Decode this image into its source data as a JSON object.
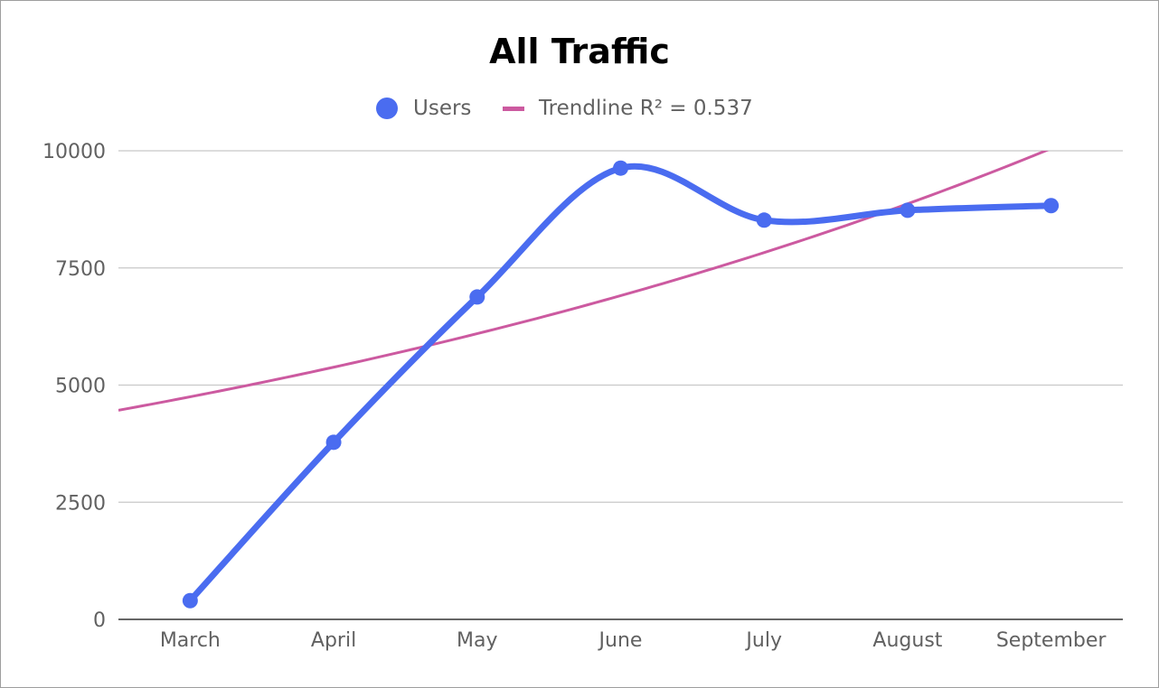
{
  "chart_data": {
    "type": "line",
    "title": "All Traffic",
    "xlabel": "",
    "ylabel": "",
    "categories": [
      "March",
      "April",
      "May",
      "June",
      "July",
      "August",
      "September"
    ],
    "series": [
      {
        "name": "Users",
        "values": [
          400,
          3780,
          6880,
          9630,
          8520,
          8730,
          8830
        ],
        "color": "#4a6cf0",
        "smooth": true,
        "markers": true
      }
    ],
    "trendline": {
      "label": "Trendline R² = 0.537",
      "type": "exponential",
      "color": "#cc5aa0",
      "r_squared": 0.537,
      "start_value": 4750,
      "growth_per_period": 1.133
    },
    "yticks": [
      "10000",
      "7500",
      "5000",
      "2500",
      "0"
    ],
    "ylim": [
      0,
      10000
    ],
    "grid": true,
    "legend": "top-center"
  }
}
